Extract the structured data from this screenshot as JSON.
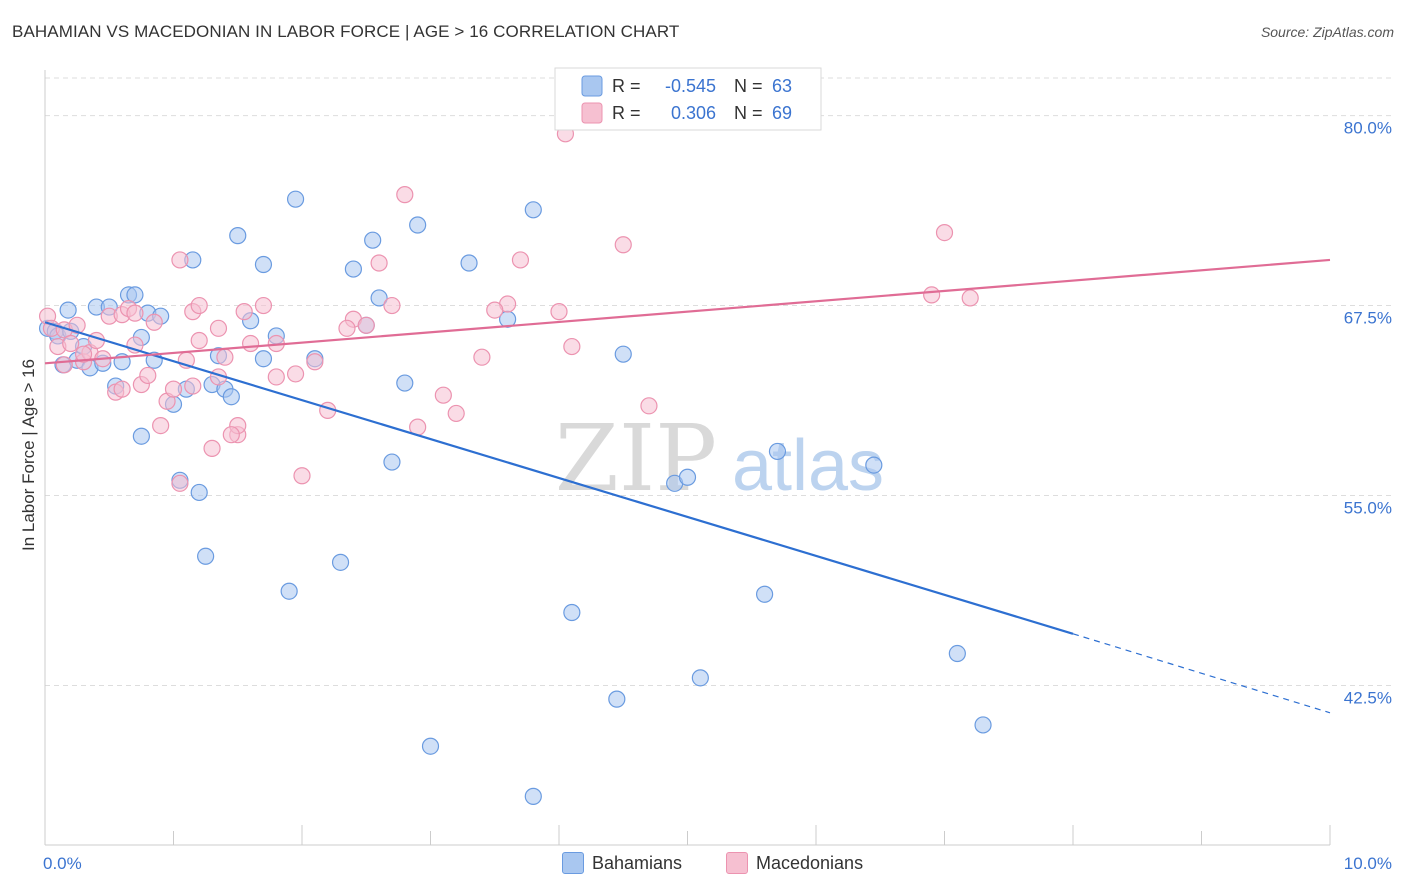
{
  "header": {
    "title": "BAHAMIAN VS MACEDONIAN IN LABOR FORCE | AGE > 16 CORRELATION CHART",
    "source": "Source: ZipAtlas.com"
  },
  "colors": {
    "blue_fill": "#a9c7f0",
    "blue_stroke": "#6a9be0",
    "blue_line": "#2d6fd1",
    "pink_fill": "#f6c0d1",
    "pink_stroke": "#ec93b0",
    "pink_line": "#e06c95",
    "tick_label": "#3b74d0",
    "grid": "#dddddd"
  },
  "watermark": {
    "zip": "ZIP",
    "atlas": "atlas"
  },
  "stats_box": {
    "rows": [
      {
        "r_label": "R =",
        "r_value": "-0.545",
        "n_label": "N =",
        "n_value": "63"
      },
      {
        "r_label": "R =",
        "r_value": "0.306",
        "n_label": "N =",
        "n_value": "69"
      }
    ]
  },
  "legend": {
    "items": [
      "Bahamians",
      "Macedonians"
    ]
  },
  "chart_data": {
    "type": "scatter",
    "title": "BAHAMIAN VS MACEDONIAN IN LABOR FORCE | AGE > 16 CORRELATION CHART",
    "xlabel": "",
    "ylabel": "In Labor Force | Age > 16",
    "xlim": [
      0,
      10
    ],
    "ylim": [
      32,
      83
    ],
    "x_tick_labels": [
      "0.0%",
      "10.0%"
    ],
    "y_ticks": [
      42.5,
      55.0,
      67.5,
      80.0
    ],
    "y_tick_labels": [
      "42.5%",
      "55.0%",
      "67.5%",
      "80.0%"
    ],
    "grid": "horizontal dashed",
    "legend_placement": "bottom-center",
    "series": [
      {
        "name": "Bahamians",
        "color": "#a9c7f0",
        "points": [
          [
            0.02,
            66.0
          ],
          [
            0.08,
            65.8
          ],
          [
            0.1,
            65.5
          ],
          [
            0.14,
            63.6
          ],
          [
            0.18,
            67.2
          ],
          [
            0.2,
            65.8
          ],
          [
            0.25,
            63.9
          ],
          [
            0.3,
            64.8
          ],
          [
            0.35,
            63.4
          ],
          [
            0.4,
            67.4
          ],
          [
            0.45,
            63.7
          ],
          [
            0.5,
            67.4
          ],
          [
            0.55,
            62.2
          ],
          [
            0.6,
            63.8
          ],
          [
            0.65,
            68.2
          ],
          [
            0.7,
            68.2
          ],
          [
            0.75,
            65.4
          ],
          [
            0.8,
            67.0
          ],
          [
            0.85,
            63.9
          ],
          [
            0.9,
            66.8
          ],
          [
            1.0,
            61.0
          ],
          [
            1.1,
            62.0
          ],
          [
            1.2,
            55.2
          ],
          [
            1.25,
            51.0
          ],
          [
            1.3,
            62.3
          ],
          [
            1.35,
            64.2
          ],
          [
            1.4,
            62.0
          ],
          [
            1.45,
            61.5
          ],
          [
            1.6,
            66.5
          ],
          [
            1.7,
            64.0
          ],
          [
            1.8,
            65.5
          ],
          [
            1.9,
            48.7
          ],
          [
            2.1,
            64.0
          ],
          [
            2.3,
            50.6
          ],
          [
            2.4,
            69.9
          ],
          [
            2.5,
            66.2
          ],
          [
            2.55,
            71.8
          ],
          [
            2.6,
            68.0
          ],
          [
            2.7,
            57.2
          ],
          [
            2.8,
            62.4
          ],
          [
            2.9,
            72.8
          ],
          [
            3.0,
            38.5
          ],
          [
            3.3,
            70.3
          ],
          [
            3.6,
            66.6
          ],
          [
            3.8,
            73.8
          ],
          [
            3.8,
            35.2
          ],
          [
            4.1,
            47.3
          ],
          [
            4.45,
            41.6
          ],
          [
            4.5,
            64.3
          ],
          [
            4.9,
            55.8
          ],
          [
            5.0,
            56.2
          ],
          [
            5.1,
            43.0
          ],
          [
            5.6,
            48.5
          ],
          [
            5.7,
            57.9
          ],
          [
            6.45,
            57.0
          ],
          [
            7.1,
            44.6
          ],
          [
            7.3,
            39.9
          ],
          [
            1.95,
            74.5
          ],
          [
            1.15,
            70.5
          ],
          [
            0.75,
            58.9
          ],
          [
            1.05,
            56.0
          ],
          [
            1.5,
            72.1
          ],
          [
            1.7,
            70.2
          ]
        ]
      },
      {
        "name": "Macedonians",
        "color": "#f6c0d1",
        "points": [
          [
            0.02,
            66.8
          ],
          [
            0.05,
            66.0
          ],
          [
            0.1,
            64.8
          ],
          [
            0.15,
            65.9
          ],
          [
            0.2,
            65.0
          ],
          [
            0.25,
            66.2
          ],
          [
            0.3,
            63.8
          ],
          [
            0.35,
            64.4
          ],
          [
            0.4,
            65.2
          ],
          [
            0.45,
            64.0
          ],
          [
            0.5,
            66.8
          ],
          [
            0.55,
            61.8
          ],
          [
            0.6,
            66.9
          ],
          [
            0.65,
            67.3
          ],
          [
            0.7,
            64.9
          ],
          [
            0.75,
            62.3
          ],
          [
            0.8,
            62.9
          ],
          [
            0.85,
            66.4
          ],
          [
            0.9,
            59.6
          ],
          [
            0.95,
            61.2
          ],
          [
            1.0,
            62.0
          ],
          [
            1.05,
            70.5
          ],
          [
            1.1,
            63.9
          ],
          [
            1.15,
            67.1
          ],
          [
            1.2,
            65.2
          ],
          [
            1.3,
            58.1
          ],
          [
            1.35,
            62.8
          ],
          [
            1.4,
            64.1
          ],
          [
            1.5,
            59.0
          ],
          [
            1.55,
            67.1
          ],
          [
            1.6,
            65.0
          ],
          [
            1.7,
            67.5
          ],
          [
            1.8,
            62.8
          ],
          [
            1.95,
            63.0
          ],
          [
            2.0,
            56.3
          ],
          [
            2.1,
            63.8
          ],
          [
            2.2,
            60.6
          ],
          [
            2.4,
            66.6
          ],
          [
            2.5,
            66.2
          ],
          [
            2.6,
            70.3
          ],
          [
            2.7,
            67.5
          ],
          [
            2.8,
            74.8
          ],
          [
            2.9,
            59.5
          ],
          [
            3.1,
            61.6
          ],
          [
            3.2,
            60.4
          ],
          [
            3.4,
            64.1
          ],
          [
            3.6,
            67.6
          ],
          [
            3.7,
            70.5
          ],
          [
            4.0,
            67.1
          ],
          [
            4.1,
            64.8
          ],
          [
            4.5,
            71.5
          ],
          [
            4.7,
            60.9
          ],
          [
            6.9,
            68.2
          ],
          [
            7.0,
            72.3
          ],
          [
            7.2,
            68.0
          ],
          [
            4.05,
            78.8
          ],
          [
            1.05,
            55.8
          ],
          [
            1.5,
            59.6
          ],
          [
            1.8,
            65.0
          ],
          [
            0.7,
            67.0
          ],
          [
            1.35,
            66.0
          ],
          [
            2.35,
            66.0
          ],
          [
            3.5,
            67.2
          ],
          [
            0.3,
            64.3
          ],
          [
            0.6,
            62.0
          ],
          [
            1.15,
            62.2
          ],
          [
            1.45,
            59.0
          ],
          [
            0.15,
            63.6
          ],
          [
            1.2,
            67.5
          ]
        ]
      }
    ],
    "trendlines": [
      {
        "series": "Bahamians",
        "x": [
          0.0,
          8.0
        ],
        "y": [
          66.4,
          45.9
        ],
        "dashed_extension_to_x": 10.0,
        "dashed_extension_y": 40.7
      },
      {
        "series": "Macedonians",
        "x": [
          0.0,
          10.0
        ],
        "y": [
          63.7,
          70.5
        ]
      }
    ]
  }
}
